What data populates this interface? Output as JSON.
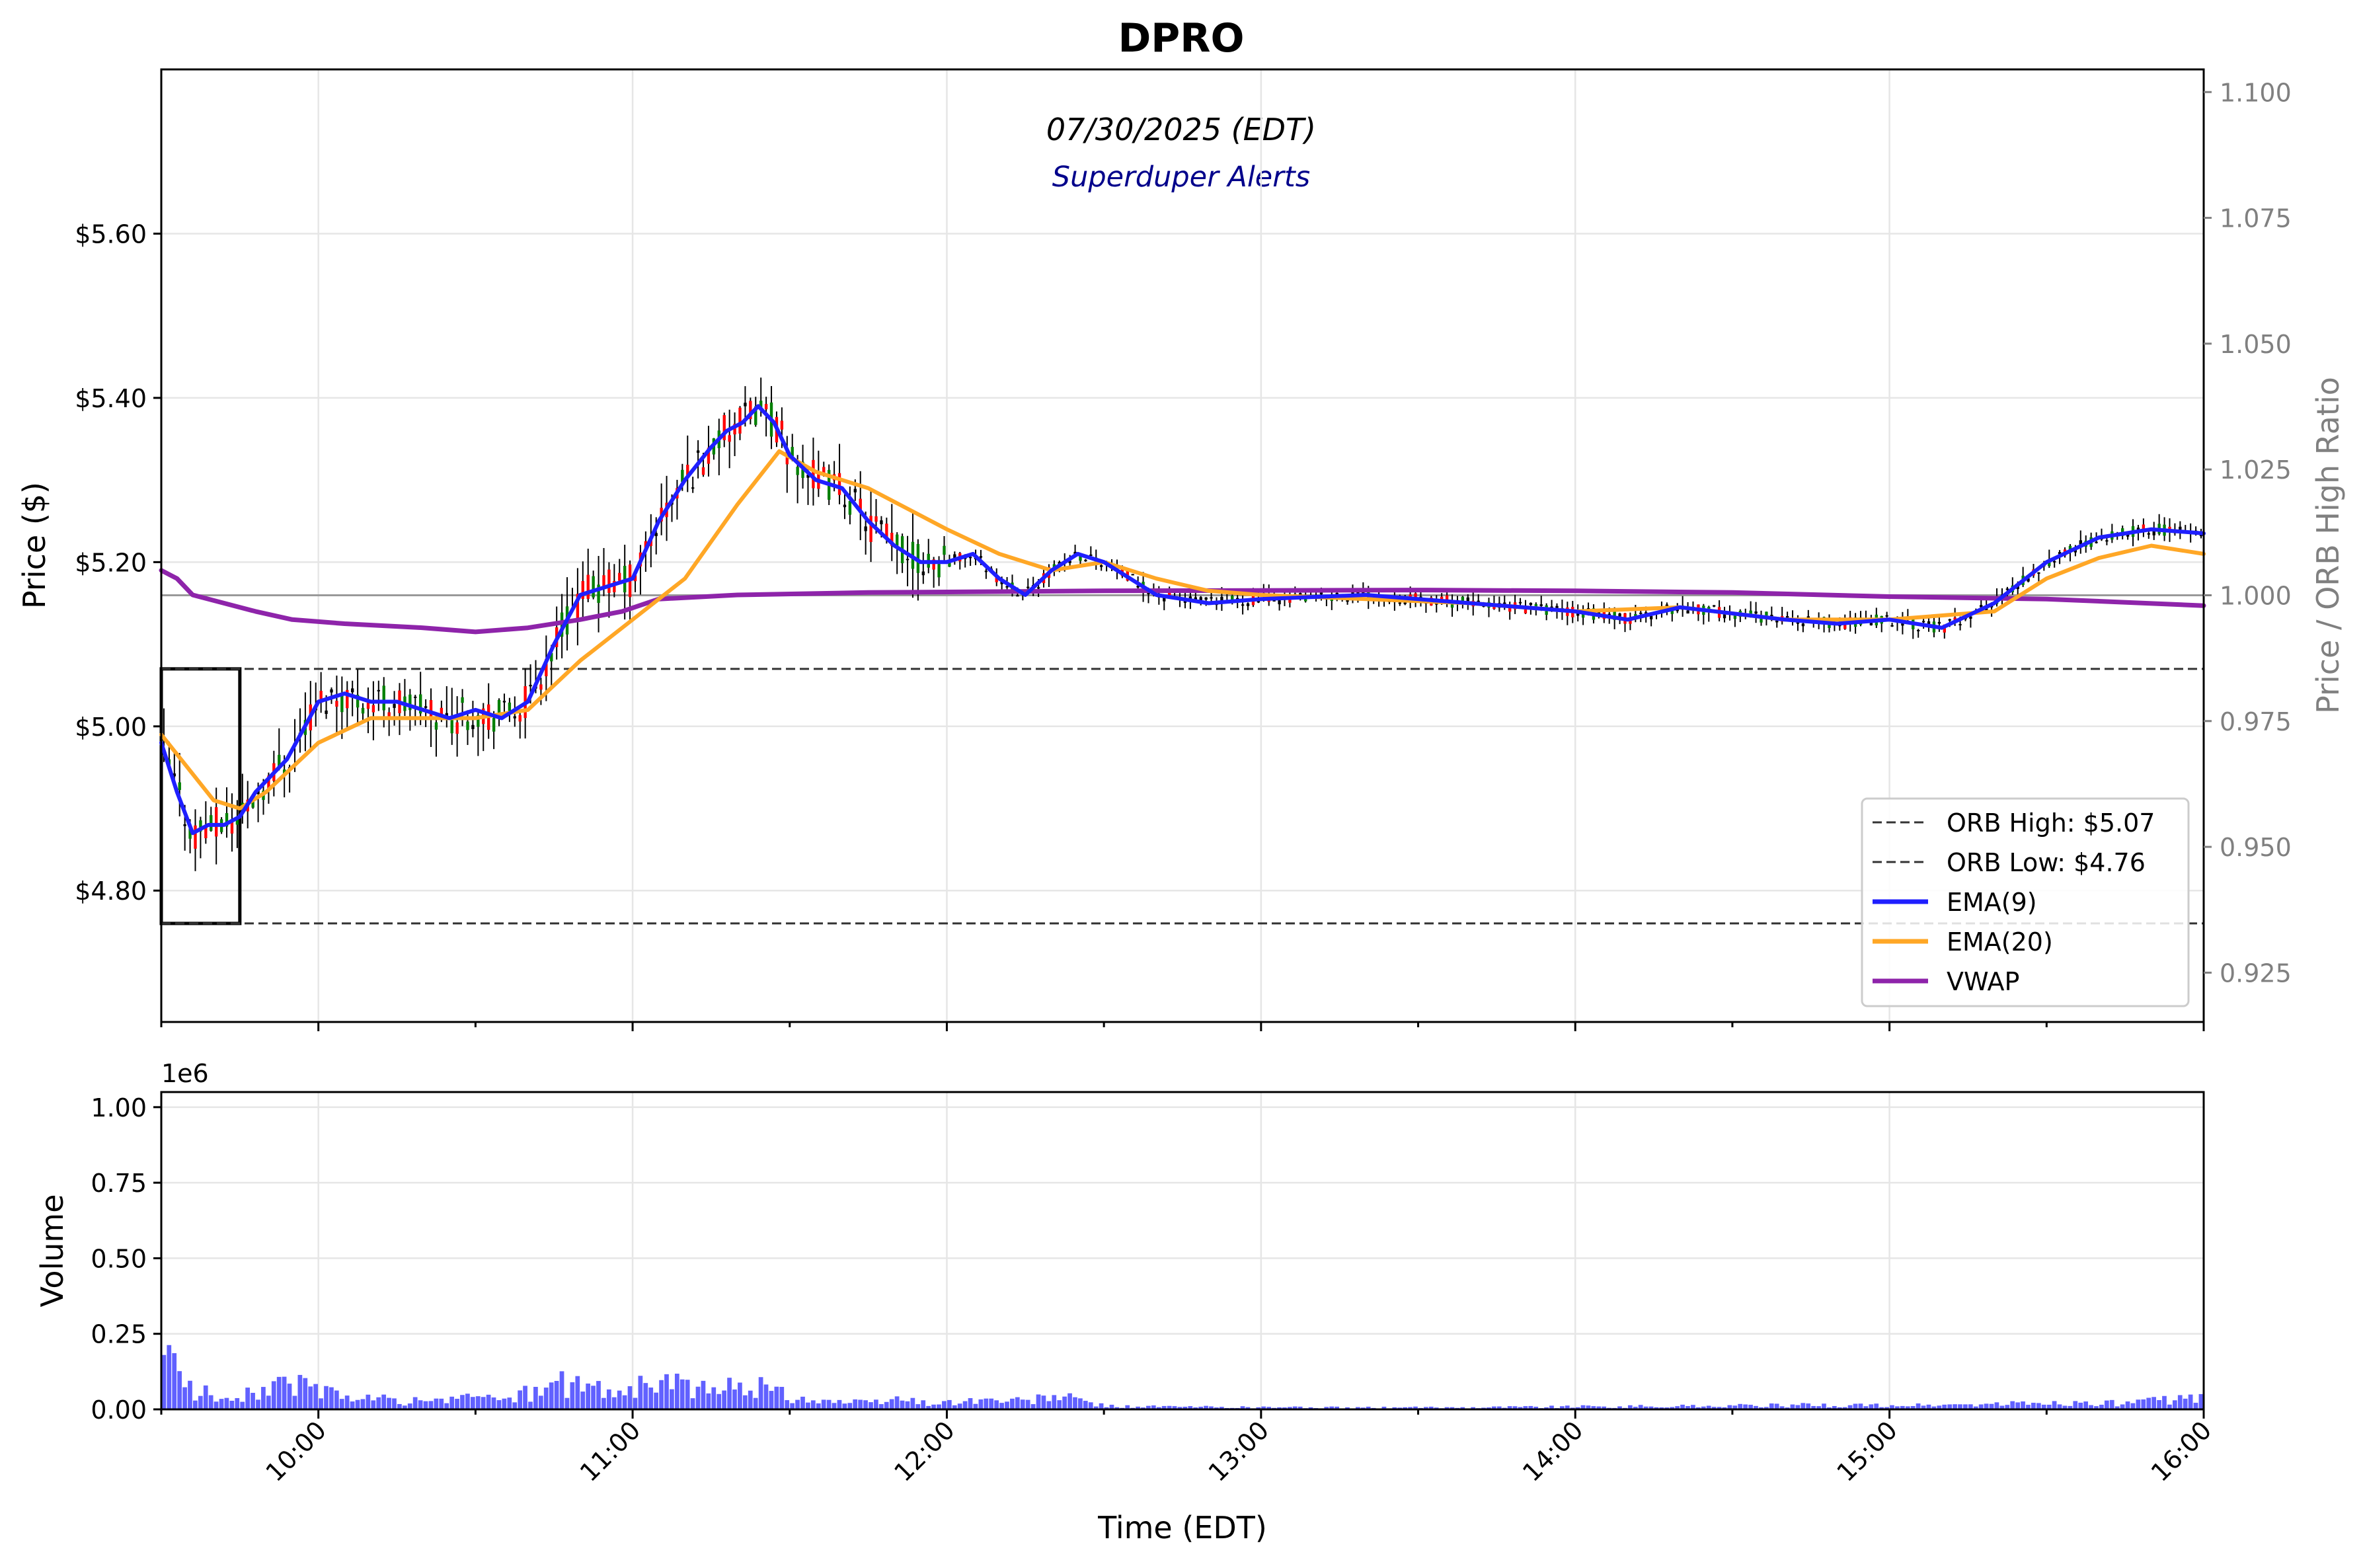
{
  "chart_data": {
    "type": "candlestick",
    "title": "DPRO",
    "subtitle": "07/30/2025 (EDT)",
    "watermark": "Superduper Alerts",
    "xlabel": "Time (EDT)",
    "ylabel": "Price ($)",
    "ylabel_right": "Price / ORB High Ratio",
    "volume_ylabel": "Volume",
    "volume_offset_label": "1e6",
    "grid": true,
    "legend_position": "lower-right",
    "x_range": [
      "09:30",
      "16:00"
    ],
    "price_ylim": [
      4.64,
      5.8
    ],
    "ratio_ylim": [
      0.9152,
      1.1045
    ],
    "volume_ylim": [
      0,
      1050000
    ],
    "x_ticks": [
      "10:00",
      "11:00",
      "12:00",
      "13:00",
      "14:00",
      "15:00",
      "16:00"
    ],
    "price_ticks": [
      {
        "value": 4.8,
        "label": "$4.80"
      },
      {
        "value": 5.0,
        "label": "$5.00"
      },
      {
        "value": 5.2,
        "label": "$5.20"
      },
      {
        "value": 5.4,
        "label": "$5.40"
      },
      {
        "value": 5.6,
        "label": "$5.60"
      }
    ],
    "ratio_ticks": [
      {
        "value": 0.925,
        "label": "0.925"
      },
      {
        "value": 0.95,
        "label": "0.950"
      },
      {
        "value": 0.975,
        "label": "0.975"
      },
      {
        "value": 1.0,
        "label": "1.000"
      },
      {
        "value": 1.025,
        "label": "1.025"
      },
      {
        "value": 1.05,
        "label": "1.050"
      },
      {
        "value": 1.075,
        "label": "1.075"
      },
      {
        "value": 1.1,
        "label": "1.100"
      }
    ],
    "volume_ticks": [
      {
        "value": 0,
        "label": "0.00"
      },
      {
        "value": 250000,
        "label": "0.25"
      },
      {
        "value": 500000,
        "label": "0.50"
      },
      {
        "value": 750000,
        "label": "0.75"
      },
      {
        "value": 1000000,
        "label": "1.00"
      }
    ],
    "orb": {
      "high": 5.07,
      "low": 4.76,
      "start": "09:30",
      "end": "09:45"
    },
    "reference_ratio_line": 1.0,
    "colors": {
      "up": "#008000",
      "down": "#ff0000",
      "neutral": "#000000",
      "ema9": "#1f1fff",
      "ema20": "#ffa726",
      "vwap": "#8e24aa",
      "volume": "#3a3aff",
      "reference_line": "#999999",
      "watermark": "#00008b"
    },
    "legend": [
      {
        "label": "ORB High: $5.07",
        "style": "dashed",
        "color": "#333333"
      },
      {
        "label": "ORB Low: $4.76",
        "style": "dashed",
        "color": "#333333"
      },
      {
        "label": "EMA(9)",
        "style": "solid",
        "color": "#1f1fff"
      },
      {
        "label": "EMA(20)",
        "style": "solid",
        "color": "#ffa726"
      },
      {
        "label": "VWAP",
        "style": "solid",
        "color": "#8e24aa"
      }
    ],
    "series": [
      {
        "name": "VWAP",
        "points": [
          [
            "09:30",
            5.19
          ],
          [
            "09:33",
            5.18
          ],
          [
            "09:36",
            5.16
          ],
          [
            "09:42",
            5.15
          ],
          [
            "09:48",
            5.14
          ],
          [
            "09:55",
            5.13
          ],
          [
            "10:05",
            5.125
          ],
          [
            "10:20",
            5.12
          ],
          [
            "10:30",
            5.115
          ],
          [
            "10:40",
            5.12
          ],
          [
            "10:50",
            5.13
          ],
          [
            "10:58",
            5.14
          ],
          [
            "11:05",
            5.155
          ],
          [
            "11:20",
            5.16
          ],
          [
            "11:45",
            5.163
          ],
          [
            "12:30",
            5.165
          ],
          [
            "13:30",
            5.166
          ],
          [
            "14:00",
            5.165
          ],
          [
            "14:30",
            5.163
          ],
          [
            "15:00",
            5.158
          ],
          [
            "15:30",
            5.155
          ],
          [
            "16:00",
            5.147
          ]
        ]
      },
      {
        "name": "EMA(9)",
        "points": [
          [
            "09:30",
            4.98
          ],
          [
            "09:33",
            4.92
          ],
          [
            "09:36",
            4.87
          ],
          [
            "09:39",
            4.88
          ],
          [
            "09:42",
            4.88
          ],
          [
            "09:45",
            4.89
          ],
          [
            "09:48",
            4.92
          ],
          [
            "09:54",
            4.96
          ],
          [
            "10:00",
            5.03
          ],
          [
            "10:05",
            5.04
          ],
          [
            "10:10",
            5.03
          ],
          [
            "10:15",
            5.03
          ],
          [
            "10:20",
            5.02
          ],
          [
            "10:25",
            5.01
          ],
          [
            "10:30",
            5.02
          ],
          [
            "10:35",
            5.01
          ],
          [
            "10:40",
            5.03
          ],
          [
            "10:45",
            5.1
          ],
          [
            "10:50",
            5.16
          ],
          [
            "10:55",
            5.17
          ],
          [
            "11:00",
            5.18
          ],
          [
            "11:05",
            5.25
          ],
          [
            "11:10",
            5.3
          ],
          [
            "11:15",
            5.34
          ],
          [
            "11:18",
            5.36
          ],
          [
            "11:21",
            5.37
          ],
          [
            "11:24",
            5.39
          ],
          [
            "11:27",
            5.37
          ],
          [
            "11:30",
            5.33
          ],
          [
            "11:35",
            5.3
          ],
          [
            "11:40",
            5.29
          ],
          [
            "11:45",
            5.25
          ],
          [
            "11:50",
            5.22
          ],
          [
            "11:55",
            5.2
          ],
          [
            "12:00",
            5.2
          ],
          [
            "12:05",
            5.21
          ],
          [
            "12:10",
            5.18
          ],
          [
            "12:15",
            5.16
          ],
          [
            "12:20",
            5.19
          ],
          [
            "12:25",
            5.21
          ],
          [
            "12:30",
            5.2
          ],
          [
            "12:35",
            5.18
          ],
          [
            "12:40",
            5.16
          ],
          [
            "12:50",
            5.15
          ],
          [
            "13:00",
            5.155
          ],
          [
            "13:20",
            5.16
          ],
          [
            "13:40",
            5.15
          ],
          [
            "14:00",
            5.14
          ],
          [
            "14:10",
            5.13
          ],
          [
            "14:20",
            5.145
          ],
          [
            "14:40",
            5.13
          ],
          [
            "14:50",
            5.125
          ],
          [
            "15:00",
            5.13
          ],
          [
            "15:10",
            5.12
          ],
          [
            "15:20",
            5.15
          ],
          [
            "15:30",
            5.2
          ],
          [
            "15:40",
            5.23
          ],
          [
            "15:50",
            5.24
          ],
          [
            "16:00",
            5.235
          ]
        ]
      },
      {
        "name": "EMA(20)",
        "points": [
          [
            "09:30",
            4.99
          ],
          [
            "09:35",
            4.95
          ],
          [
            "09:40",
            4.91
          ],
          [
            "09:45",
            4.9
          ],
          [
            "09:50",
            4.92
          ],
          [
            "10:00",
            4.98
          ],
          [
            "10:10",
            5.01
          ],
          [
            "10:20",
            5.01
          ],
          [
            "10:30",
            5.01
          ],
          [
            "10:40",
            5.02
          ],
          [
            "10:50",
            5.08
          ],
          [
            "11:00",
            5.13
          ],
          [
            "11:10",
            5.18
          ],
          [
            "11:20",
            5.27
          ],
          [
            "11:28",
            5.335
          ],
          [
            "11:35",
            5.31
          ],
          [
            "11:45",
            5.29
          ],
          [
            "12:00",
            5.24
          ],
          [
            "12:10",
            5.21
          ],
          [
            "12:20",
            5.19
          ],
          [
            "12:30",
            5.2
          ],
          [
            "12:40",
            5.18
          ],
          [
            "12:50",
            5.165
          ],
          [
            "13:00",
            5.16
          ],
          [
            "13:20",
            5.155
          ],
          [
            "13:40",
            5.15
          ],
          [
            "14:00",
            5.14
          ],
          [
            "14:20",
            5.145
          ],
          [
            "14:40",
            5.13
          ],
          [
            "15:00",
            5.13
          ],
          [
            "15:20",
            5.14
          ],
          [
            "15:30",
            5.18
          ],
          [
            "15:40",
            5.205
          ],
          [
            "15:50",
            5.22
          ],
          [
            "16:00",
            5.21
          ]
        ]
      }
    ],
    "volume_bars_per_5min": [
      [
        "09:30",
        180000
      ],
      [
        "09:35",
        62000
      ],
      [
        "09:40",
        45000
      ],
      [
        "09:45",
        48000
      ],
      [
        "09:50",
        70000
      ],
      [
        "09:55",
        82000
      ],
      [
        "10:00",
        58000
      ],
      [
        "10:05",
        40000
      ],
      [
        "10:10",
        36000
      ],
      [
        "10:15",
        25000
      ],
      [
        "10:20",
        30000
      ],
      [
        "10:25",
        28000
      ],
      [
        "10:30",
        52000
      ],
      [
        "10:35",
        32000
      ],
      [
        "10:40",
        55000
      ],
      [
        "10:45",
        84000
      ],
      [
        "10:50",
        76000
      ],
      [
        "10:55",
        60000
      ],
      [
        "11:00",
        70000
      ],
      [
        "11:05",
        90000
      ],
      [
        "11:10",
        75000
      ],
      [
        "11:15",
        52000
      ],
      [
        "11:20",
        88000
      ],
      [
        "11:25",
        70000
      ],
      [
        "11:30",
        42000
      ],
      [
        "11:35",
        30000
      ],
      [
        "11:40",
        24000
      ],
      [
        "11:45",
        20000
      ],
      [
        "11:50",
        35000
      ],
      [
        "11:55",
        22000
      ],
      [
        "12:00",
        22000
      ],
      [
        "12:05",
        30000
      ],
      [
        "12:10",
        28000
      ],
      [
        "12:15",
        26000
      ],
      [
        "12:20",
        44000
      ],
      [
        "12:25",
        28000
      ],
      [
        "12:30",
        10000
      ],
      [
        "12:45",
        8000
      ],
      [
        "13:00",
        7000
      ],
      [
        "13:15",
        6000
      ],
      [
        "13:30",
        6000
      ],
      [
        "13:45",
        8000
      ],
      [
        "14:00",
        9000
      ],
      [
        "14:15",
        10000
      ],
      [
        "14:30",
        12000
      ],
      [
        "14:45",
        14000
      ],
      [
        "15:00",
        12000
      ],
      [
        "15:15",
        15000
      ],
      [
        "15:30",
        20000
      ],
      [
        "15:45",
        20000
      ],
      [
        "16:00",
        40000
      ]
    ]
  }
}
